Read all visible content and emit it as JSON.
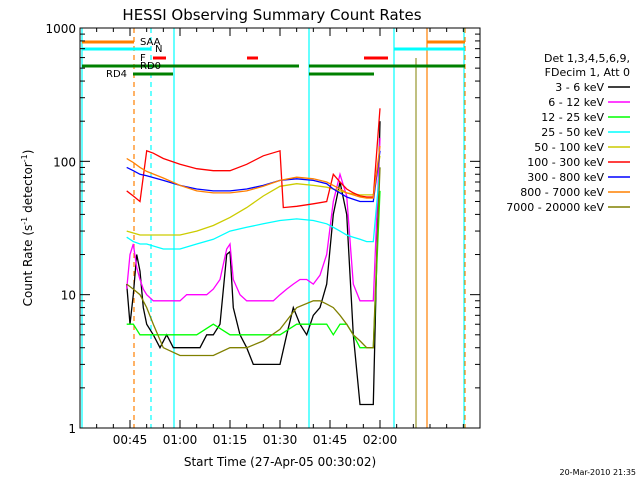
{
  "chart_data": {
    "type": "line",
    "title": "HESSI Observing Summary Count Rates",
    "xlabel": "Start Time (27-Apr-05 00:30:02)",
    "ylabel_main": "Count Rate (s",
    "ylabel_sup1": "-1",
    "ylabel_mid": " detector",
    "ylabel_sup2": "-1",
    "ylabel_end": ")",
    "y_scale": "log",
    "ylim": [
      1,
      1000
    ],
    "xlim_minutes": [
      0,
      120
    ],
    "x_ticks": [
      {
        "label": "00:45",
        "t": 15
      },
      {
        "label": "01:00",
        "t": 30
      },
      {
        "label": "01:15",
        "t": 45
      },
      {
        "label": "01:30",
        "t": 60
      },
      {
        "label": "01:45",
        "t": 75
      },
      {
        "label": "02:00",
        "t": 90
      }
    ],
    "y_ticks": [
      {
        "label": "1",
        "v": 1
      },
      {
        "label": "10",
        "v": 10
      },
      {
        "label": "100",
        "v": 100
      },
      {
        "label": "1000",
        "v": 1000
      }
    ],
    "legend": {
      "placement": "right",
      "header": [
        "Det 1,3,4,5,6,9,",
        "FDecim 1, Att 0"
      ]
    },
    "series": [
      {
        "name": "3 - 6 keV",
        "color": "#000000",
        "x": [
          14,
          15,
          16,
          17,
          18,
          19,
          20,
          22,
          24,
          26,
          28,
          30,
          32,
          34,
          36,
          38,
          40,
          42,
          44,
          45,
          46,
          48,
          50,
          52,
          54,
          56,
          58,
          60,
          62,
          64,
          66,
          68,
          70,
          72,
          74,
          76,
          78,
          80,
          82,
          84,
          86,
          88,
          90
        ],
        "y": [
          12,
          6,
          10,
          20,
          15,
          8,
          6,
          5,
          4,
          5,
          4,
          4,
          4,
          4,
          4,
          5,
          5,
          6,
          20,
          21,
          8,
          5,
          4,
          3,
          3,
          3,
          3,
          3,
          5,
          8,
          6,
          5,
          7,
          8,
          12,
          40,
          70,
          40,
          5,
          1.5,
          1.5,
          1.5,
          200
        ]
      },
      {
        "name": "6 - 12 keV",
        "color": "#ff00ff",
        "x": [
          14,
          15,
          16,
          17,
          18,
          19,
          20,
          22,
          24,
          26,
          28,
          30,
          32,
          34,
          36,
          38,
          40,
          42,
          44,
          45,
          46,
          48,
          50,
          52,
          54,
          56,
          58,
          60,
          62,
          64,
          66,
          68,
          70,
          72,
          74,
          76,
          78,
          80,
          82,
          84,
          86,
          88,
          90
        ],
        "y": [
          11,
          20,
          24,
          16,
          13,
          11,
          10,
          9,
          9,
          9,
          9,
          9,
          10,
          10,
          10,
          10,
          11,
          13,
          22,
          24,
          13,
          10,
          9,
          9,
          9,
          9,
          9,
          10,
          11,
          12,
          13,
          13,
          12,
          14,
          20,
          50,
          80,
          55,
          12,
          9,
          9,
          9,
          150
        ]
      },
      {
        "name": "12 - 25 keV",
        "color": "#00ff00",
        "x": [
          14,
          16,
          18,
          20,
          25,
          30,
          35,
          40,
          45,
          50,
          55,
          60,
          65,
          70,
          74,
          76,
          78,
          80,
          82,
          84,
          86,
          88,
          90
        ],
        "y": [
          6,
          6,
          5,
          5,
          5,
          5,
          5,
          6,
          5,
          5,
          5,
          5,
          6,
          6,
          6,
          5,
          6,
          6,
          5,
          4,
          4,
          4,
          60
        ]
      },
      {
        "name": "25 - 50 keV",
        "color": "#00ffff",
        "x": [
          14,
          16,
          18,
          20,
          25,
          30,
          35,
          40,
          45,
          50,
          55,
          60,
          65,
          70,
          74,
          76,
          78,
          80,
          82,
          84,
          86,
          88,
          90
        ],
        "y": [
          27,
          25,
          24,
          24,
          22,
          22,
          24,
          26,
          30,
          32,
          34,
          36,
          37,
          36,
          34,
          32,
          30,
          28,
          27,
          26,
          25,
          25,
          90
        ]
      },
      {
        "name": "50 - 100 keV",
        "color": "#cccc00",
        "x": [
          14,
          16,
          18,
          20,
          25,
          30,
          35,
          40,
          45,
          50,
          55,
          60,
          65,
          70,
          74,
          76,
          78,
          80,
          82,
          84,
          86,
          88,
          90
        ],
        "y": [
          30,
          29,
          28,
          28,
          28,
          28,
          30,
          33,
          38,
          45,
          55,
          65,
          68,
          66,
          64,
          62,
          60,
          58,
          57,
          56,
          56,
          56,
          110
        ]
      },
      {
        "name": "100 - 300 keV",
        "color": "#ff0000",
        "x": [
          14,
          16,
          18,
          20,
          22,
          25,
          30,
          35,
          40,
          45,
          50,
          55,
          60,
          61,
          65,
          70,
          74,
          76,
          78,
          80,
          82,
          84,
          86,
          88,
          90
        ],
        "y": [
          60,
          55,
          50,
          120,
          115,
          105,
          95,
          88,
          85,
          85,
          95,
          110,
          120,
          45,
          46,
          48,
          50,
          80,
          70,
          62,
          58,
          55,
          54,
          54,
          250
        ]
      },
      {
        "name": "300 - 800 keV",
        "color": "#0000ff",
        "x": [
          14,
          16,
          18,
          20,
          25,
          30,
          35,
          40,
          45,
          50,
          55,
          60,
          65,
          70,
          74,
          76,
          78,
          80,
          82,
          84,
          86,
          88,
          90
        ],
        "y": [
          90,
          85,
          80,
          78,
          72,
          66,
          62,
          60,
          60,
          62,
          66,
          72,
          74,
          72,
          68,
          62,
          58,
          54,
          52,
          50,
          50,
          50,
          120
        ]
      },
      {
        "name": "800 - 7000 keV",
        "color": "#ff8000",
        "x": [
          14,
          16,
          18,
          20,
          25,
          30,
          35,
          40,
          45,
          50,
          55,
          60,
          65,
          70,
          74,
          76,
          78,
          80,
          82,
          84,
          86,
          88,
          90
        ],
        "y": [
          105,
          98,
          90,
          84,
          75,
          66,
          60,
          58,
          58,
          60,
          65,
          72,
          76,
          74,
          70,
          66,
          62,
          58,
          56,
          54,
          53,
          53,
          130
        ]
      },
      {
        "name": "7000 - 20000 keV",
        "color": "#808000",
        "x": [
          14,
          16,
          18,
          20,
          22,
          25,
          30,
          35,
          40,
          45,
          50,
          55,
          60,
          65,
          70,
          72,
          74,
          76,
          78,
          80,
          82,
          84,
          86,
          88,
          90
        ],
        "y": [
          12,
          11,
          10,
          8,
          6,
          4,
          3.5,
          3.5,
          3.5,
          4,
          4,
          4.5,
          5.5,
          8,
          9,
          9,
          8.5,
          8,
          7,
          6,
          5,
          4.5,
          4,
          4,
          90
        ]
      }
    ],
    "state_bars": [
      {
        "label": "SAA",
        "color": "#ff8000"
      },
      {
        "label": "N",
        "color": "#00ffff"
      },
      {
        "label": "F",
        "color": "#ff0000"
      },
      {
        "label": "RD0",
        "color": "#008000"
      },
      {
        "label": "RD4",
        "color": "#008000"
      }
    ],
    "footer_timestamp": "20-Mar-2010 21:35"
  }
}
